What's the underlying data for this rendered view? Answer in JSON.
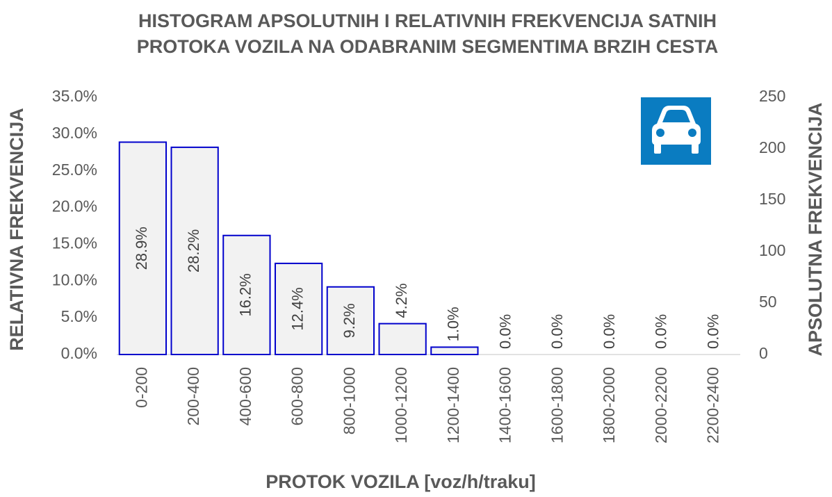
{
  "chart_data": {
    "type": "bar",
    "title": "HISTOGRAM APSOLUTNIH I RELATIVNIH FREKVENCIJA SATNIH PROTOKA VOZILA NA ODABRANIM SEGMENTIMA BRZIH CESTA",
    "x_label": "PROTOK VOZILA [voz/h/traku]",
    "y_label": "RELATIVNA FREKVENCIJA",
    "y2_label": "APSOLUTNA FREKVENCIJA",
    "categories": [
      "0-200",
      "200-400",
      "400-600",
      "600-800",
      "800-1000",
      "1000-1200",
      "1200-1400",
      "1400-1600",
      "1600-1800",
      "1800-2000",
      "2000-2200",
      "2200-2400"
    ],
    "values": [
      28.9,
      28.2,
      16.2,
      12.4,
      9.2,
      4.2,
      1.0,
      0,
      0,
      0,
      0,
      0
    ],
    "value_labels": [
      "28.9%",
      "28.2%",
      "16.2%",
      "12.4%",
      "9.2%",
      "4.2%",
      "1.0%",
      "0.0%",
      "0.0%",
      "0.0%",
      "0.0%",
      "0.0%"
    ],
    "color": "#f2f2f2",
    "edge_color": "#0000cc",
    "ylim": [
      0,
      35
    ],
    "yticks": [
      {
        "value": 0,
        "label": "0.0%"
      },
      {
        "value": 5,
        "label": "5.0%"
      },
      {
        "value": 10,
        "label": "10.0%"
      },
      {
        "value": 15,
        "label": "15.0%"
      },
      {
        "value": 20,
        "label": "20.0%"
      },
      {
        "value": 25,
        "label": "25.0%"
      },
      {
        "value": 30,
        "label": "30.0%"
      },
      {
        "value": 35,
        "label": "35.0%"
      }
    ],
    "y2lim": [
      0,
      250
    ],
    "y2ticks": [
      0,
      50,
      100,
      150,
      200,
      250
    ],
    "grid": false
  }
}
